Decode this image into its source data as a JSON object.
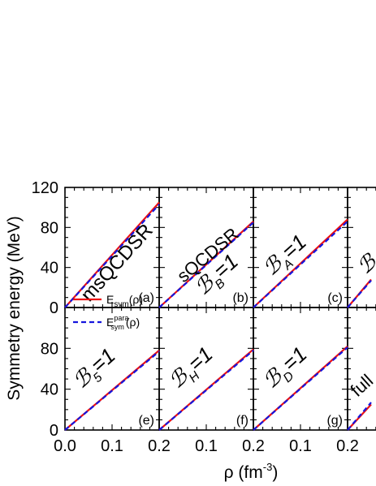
{
  "figure": {
    "ylabel": "Symmetry energy (MeV)",
    "xlabel_main": "ρ (fm",
    "xlabel_sup": "-3",
    "xlabel_close": ")",
    "legend": {
      "solid_main": "E",
      "solid_sub": "sym",
      "solid_arg": "(ρ)",
      "dashed_main": "E",
      "dashed_sup": "para",
      "dashed_sub": "sym",
      "dashed_arg": "(ρ)"
    }
  },
  "chart_data": {
    "type": "line",
    "colors": {
      "solid": "#ee1111",
      "dashed": "#1515dd"
    },
    "grid": false,
    "xlim": [
      0.0,
      0.2
    ],
    "x_ticks": [
      "0.0",
      "0.1",
      "0.2"
    ],
    "rows": [
      {
        "ylim": [
          0,
          120
        ],
        "y_ticks": [
          "0",
          "40",
          "80",
          "120"
        ]
      },
      {
        "ylim": [
          0,
          120
        ],
        "y_ticks": [
          "0",
          "40",
          "80"
        ]
      }
    ],
    "panels": [
      {
        "row": 0,
        "col": 0,
        "tag": "(a)",
        "label": "msQCDSR",
        "label_sub": "",
        "label_rest": "",
        "series": [
          {
            "x": [
              0.0,
              0.2
            ],
            "y": [
              0,
              105
            ]
          },
          {
            "x": [
              0.0,
              0.2
            ],
            "y": [
              0,
              103
            ]
          }
        ]
      },
      {
        "row": 0,
        "col": 1,
        "tag": "(b)",
        "label": "sQCDSR",
        "label_sub": "",
        "label_rest": "",
        "label2": "ℬ",
        "label2_sub": "B",
        "label2_rest": "=1",
        "series": [
          {
            "x": [
              0.0,
              0.2
            ],
            "y": [
              0,
              86
            ]
          },
          {
            "x": [
              0.0,
              0.2
            ],
            "y": [
              0,
              85
            ]
          }
        ]
      },
      {
        "row": 0,
        "col": 2,
        "tag": "(c)",
        "label": "ℬ",
        "label_sub": "A",
        "label_rest": "=1",
        "series": [
          {
            "x": [
              0.0,
              0.2
            ],
            "y": [
              0,
              88
            ]
          },
          {
            "x": [
              0.0,
              0.2
            ],
            "y": [
              0,
              86
            ]
          }
        ]
      },
      {
        "row": 0,
        "col": 3,
        "tag": "",
        "label": "ℬ",
        "label_sub": "",
        "label_rest": "",
        "series": [
          {
            "x": [
              0.0,
              0.05
            ],
            "y": [
              0,
              28
            ]
          },
          {
            "x": [
              0.0,
              0.05
            ],
            "y": [
              0,
              27
            ]
          }
        ]
      },
      {
        "row": 1,
        "col": 0,
        "tag": "(e)",
        "label": "ℬ",
        "label_sub": "5",
        "label_rest": "=1",
        "series": [
          {
            "x": [
              0.0,
              0.2
            ],
            "y": [
              0,
              78
            ]
          },
          {
            "x": [
              0.0,
              0.2
            ],
            "y": [
              0,
              77
            ]
          }
        ]
      },
      {
        "row": 1,
        "col": 1,
        "tag": "(f)",
        "label": "ℬ",
        "label_sub": "H",
        "label_rest": "=1",
        "series": [
          {
            "x": [
              0.0,
              0.2
            ],
            "y": [
              0,
              79
            ]
          },
          {
            "x": [
              0.0,
              0.2
            ],
            "y": [
              0,
              78
            ]
          }
        ]
      },
      {
        "row": 1,
        "col": 2,
        "tag": "(g)",
        "label": "ℬ",
        "label_sub": "D",
        "label_rest": "=1",
        "series": [
          {
            "x": [
              0.0,
              0.2
            ],
            "y": [
              0,
              82
            ]
          },
          {
            "x": [
              0.0,
              0.2
            ],
            "y": [
              0,
              81
            ]
          }
        ]
      },
      {
        "row": 1,
        "col": 3,
        "tag": "",
        "label": "full",
        "label_sub": "",
        "label_rest": "",
        "series": [
          {
            "x": [
              0.0,
              0.05
            ],
            "y": [
              0,
              25
            ]
          },
          {
            "x": [
              0.0,
              0.05
            ],
            "y": [
              0,
              27
            ]
          }
        ]
      }
    ]
  }
}
